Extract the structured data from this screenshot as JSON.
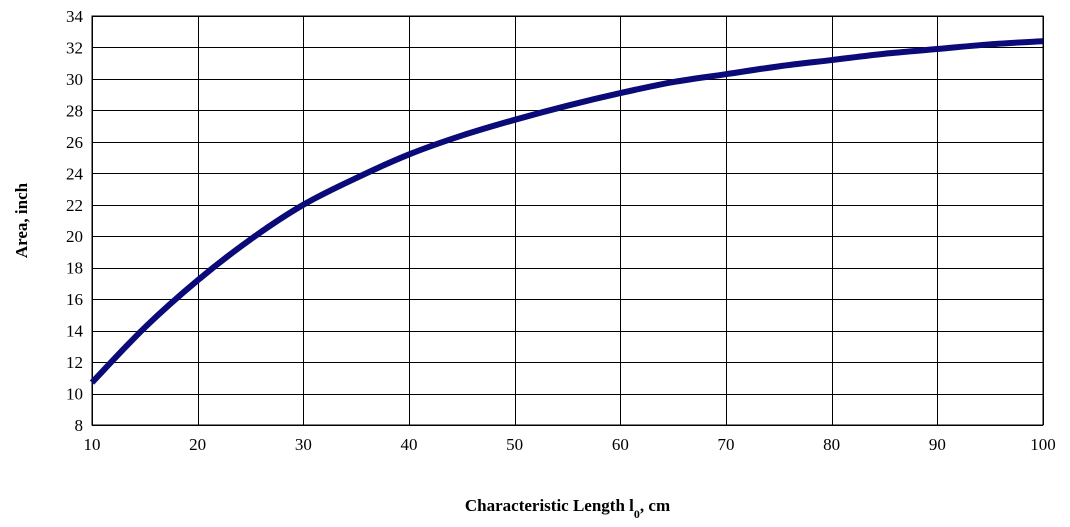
{
  "chart_data": {
    "type": "line",
    "title": "",
    "xlabel_main": "Characteristic Length l",
    "xlabel_sub": "0",
    "xlabel_suffix": ", cm",
    "ylabel": "Area, inch",
    "xlim": [
      10,
      100
    ],
    "ylim": [
      8,
      34
    ],
    "xticks": [
      10,
      20,
      30,
      40,
      50,
      60,
      70,
      80,
      90,
      100
    ],
    "yticks": [
      8,
      10,
      12,
      14,
      16,
      18,
      20,
      22,
      24,
      26,
      28,
      30,
      32,
      34
    ],
    "grid": true,
    "legend": "none",
    "series": [
      {
        "color": "#0a0a78",
        "x": [
          10,
          15,
          20,
          25,
          30,
          35,
          40,
          45,
          50,
          55,
          60,
          65,
          70,
          75,
          80,
          85,
          90,
          95,
          100
        ],
        "y": [
          10.7,
          14.2,
          17.2,
          19.8,
          22.0,
          23.7,
          25.2,
          26.4,
          27.4,
          28.3,
          29.1,
          29.8,
          30.3,
          30.8,
          31.2,
          31.6,
          31.9,
          32.2,
          32.4
        ]
      }
    ]
  }
}
